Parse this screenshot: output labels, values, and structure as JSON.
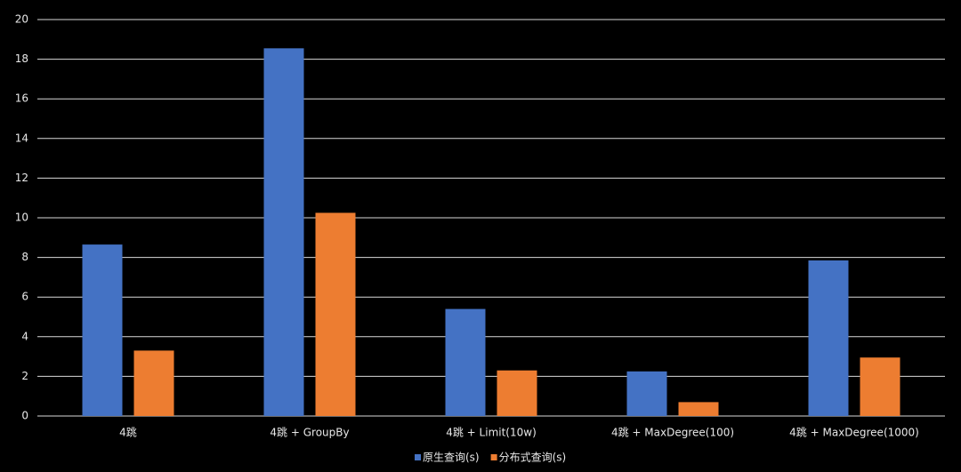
{
  "chart_data": {
    "type": "bar",
    "categories": [
      "4跳",
      "4跳 + GroupBy",
      "4跳 + Limit(10w)",
      "4跳 + MaxDegree(100)",
      "4跳 + MaxDegree(1000)"
    ],
    "series": [
      {
        "name": "原生查询(s)",
        "color": "#4472c4",
        "values": [
          8.65,
          18.55,
          5.4,
          2.25,
          7.85
        ]
      },
      {
        "name": "分布式查询(s)",
        "color": "#ed7d31",
        "values": [
          3.3,
          10.25,
          2.3,
          0.7,
          2.95
        ]
      }
    ],
    "ylim": [
      0,
      20
    ],
    "yticks": [
      0,
      2,
      4,
      6,
      8,
      10,
      12,
      14,
      16,
      18,
      20
    ],
    "grid": true,
    "legend": "bottom"
  }
}
